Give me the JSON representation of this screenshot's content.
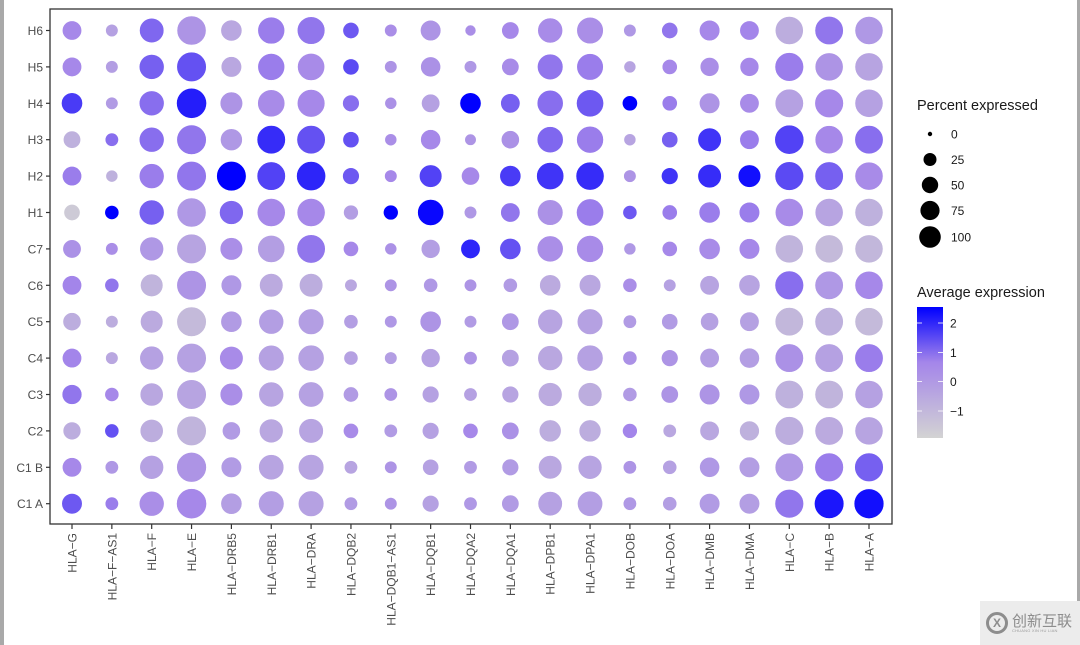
{
  "chart_data": {
    "type": "dot",
    "title": "",
    "xlabel": "",
    "ylabel": "",
    "x_categories": [
      "HLA-G",
      "HLA-F-AS1",
      "HLA-F",
      "HLA-E",
      "HLA-DRB5",
      "HLA-DRB1",
      "HLA-DRA",
      "HLA-DQB2",
      "HLA-DQB1-AS1",
      "HLA-DQB1",
      "HLA-DQA2",
      "HLA-DQA1",
      "HLA-DPB1",
      "HLA-DPA1",
      "HLA-DOB",
      "HLA-DOA",
      "HLA-DMB",
      "HLA-DMA",
      "HLA-C",
      "HLA-B",
      "HLA-A"
    ],
    "x_tick_labels": [
      "HLA−G",
      "HLA−F−AS1",
      "HLA−F",
      "HLA−E",
      "HLA−DRB5",
      "HLA−DRB1",
      "HLA−DRA",
      "HLA−DQB2",
      "HLA−DQB1−AS1",
      "HLA−DQB1",
      "HLA−DQA2",
      "HLA−DQA1",
      "HLA−DPB1",
      "HLA−DPA1",
      "HLA−DOB",
      "HLA−DOA",
      "HLA−DMB",
      "HLA−DMA",
      "HLA−C",
      "HLA−B",
      "HLA−A"
    ],
    "y_categories": [
      "H6",
      "H5",
      "H4",
      "H3",
      "H2",
      "H1",
      "C7",
      "C6",
      "C5",
      "C4",
      "C3",
      "C2",
      "C1 B",
      "C1 A"
    ],
    "cell_format": "[percent_expressed, average_expression]",
    "values": {
      "H6": [
        [
          30,
          0.6
        ],
        [
          8,
          -0.2
        ],
        [
          55,
          1.1
        ],
        [
          85,
          0.2
        ],
        [
          38,
          -0.4
        ],
        [
          70,
          0.8
        ],
        [
          75,
          0.9
        ],
        [
          18,
          1.3
        ],
        [
          8,
          0.4
        ],
        [
          35,
          0.2
        ],
        [
          5,
          0.4
        ],
        [
          22,
          0.6
        ],
        [
          58,
          0.5
        ],
        [
          68,
          0.4
        ],
        [
          8,
          0.1
        ],
        [
          18,
          0.9
        ],
        [
          35,
          0.6
        ],
        [
          30,
          0.7
        ],
        [
          78,
          -0.6
        ],
        [
          80,
          0.9
        ],
        [
          78,
          0.1
        ]
      ],
      "H5": [
        [
          30,
          0.6
        ],
        [
          8,
          -0.1
        ],
        [
          58,
          1.2
        ],
        [
          88,
          1.4
        ],
        [
          35,
          -0.4
        ],
        [
          70,
          0.8
        ],
        [
          72,
          0.5
        ],
        [
          18,
          1.5
        ],
        [
          8,
          0.2
        ],
        [
          33,
          0.3
        ],
        [
          8,
          0.1
        ],
        [
          22,
          0.5
        ],
        [
          62,
          0.9
        ],
        [
          68,
          0.8
        ],
        [
          7,
          -0.3
        ],
        [
          15,
          0.6
        ],
        [
          28,
          0.4
        ],
        [
          28,
          0.6
        ],
        [
          82,
          0.8
        ],
        [
          78,
          0.2
        ],
        [
          78,
          -0.3
        ]
      ],
      "H4": [
        [
          38,
          1.7
        ],
        [
          8,
          0.0
        ],
        [
          58,
          1.0
        ],
        [
          92,
          2.1
        ],
        [
          45,
          0.2
        ],
        [
          72,
          0.5
        ],
        [
          75,
          0.6
        ],
        [
          20,
          1.0
        ],
        [
          7,
          0.3
        ],
        [
          26,
          -0.2
        ],
        [
          38,
          2.5
        ],
        [
          30,
          1.2
        ],
        [
          65,
          1.0
        ],
        [
          72,
          1.3
        ],
        [
          15,
          2.5
        ],
        [
          15,
          0.8
        ],
        [
          35,
          0.2
        ],
        [
          30,
          0.5
        ],
        [
          80,
          -0.2
        ],
        [
          82,
          0.6
        ],
        [
          78,
          -0.2
        ]
      ],
      "H3": [
        [
          22,
          -0.7
        ],
        [
          10,
          1.0
        ],
        [
          58,
          1.0
        ],
        [
          88,
          0.9
        ],
        [
          42,
          0.1
        ],
        [
          80,
          1.9
        ],
        [
          80,
          1.4
        ],
        [
          18,
          1.4
        ],
        [
          7,
          0.4
        ],
        [
          33,
          0.6
        ],
        [
          6,
          0.2
        ],
        [
          25,
          0.3
        ],
        [
          65,
          1.1
        ],
        [
          70,
          0.8
        ],
        [
          7,
          -0.3
        ],
        [
          18,
          1.2
        ],
        [
          50,
          1.8
        ],
        [
          30,
          0.8
        ],
        [
          85,
          1.6
        ],
        [
          78,
          0.6
        ],
        [
          80,
          1.0
        ]
      ],
      "H2": [
        [
          30,
          0.8
        ],
        [
          7,
          -0.7
        ],
        [
          58,
          0.8
        ],
        [
          88,
          0.9
        ],
        [
          88,
          2.8
        ],
        [
          80,
          1.6
        ],
        [
          85,
          2.0
        ],
        [
          20,
          1.3
        ],
        [
          8,
          0.6
        ],
        [
          45,
          1.6
        ],
        [
          25,
          0.6
        ],
        [
          38,
          1.7
        ],
        [
          72,
          1.8
        ],
        [
          78,
          1.9
        ],
        [
          8,
          0.2
        ],
        [
          20,
          1.8
        ],
        [
          50,
          1.9
        ],
        [
          45,
          2.3
        ],
        [
          82,
          1.5
        ],
        [
          80,
          1.2
        ],
        [
          78,
          0.5
        ]
      ],
      "H1": [
        [
          18,
          -1.5
        ],
        [
          12,
          2.6
        ],
        [
          58,
          1.2
        ],
        [
          85,
          0.1
        ],
        [
          52,
          1.1
        ],
        [
          78,
          0.6
        ],
        [
          78,
          0.6
        ],
        [
          14,
          -0.1
        ],
        [
          14,
          2.7
        ],
        [
          65,
          2.4
        ],
        [
          8,
          0.1
        ],
        [
          30,
          0.9
        ],
        [
          62,
          0.3
        ],
        [
          72,
          0.8
        ],
        [
          12,
          1.3
        ],
        [
          15,
          0.8
        ],
        [
          38,
          0.8
        ],
        [
          35,
          0.8
        ],
        [
          78,
          0.5
        ],
        [
          78,
          -0.3
        ],
        [
          78,
          -0.7
        ]
      ],
      "C7": [
        [
          26,
          0.3
        ],
        [
          8,
          0.4
        ],
        [
          52,
          0.1
        ],
        [
          88,
          -0.3
        ],
        [
          45,
          0.4
        ],
        [
          72,
          -0.1
        ],
        [
          80,
          0.9
        ],
        [
          15,
          0.6
        ],
        [
          7,
          0.3
        ],
        [
          28,
          -0.1
        ],
        [
          30,
          2.0
        ],
        [
          38,
          1.4
        ],
        [
          65,
          0.4
        ],
        [
          70,
          0.5
        ],
        [
          7,
          0.1
        ],
        [
          15,
          0.6
        ],
        [
          38,
          0.5
        ],
        [
          35,
          0.6
        ],
        [
          78,
          -0.8
        ],
        [
          78,
          -1.0
        ],
        [
          78,
          -0.9
        ]
      ],
      "C6": [
        [
          30,
          0.7
        ],
        [
          12,
          0.9
        ],
        [
          45,
          -0.8
        ],
        [
          88,
          0.2
        ],
        [
          35,
          0.1
        ],
        [
          50,
          -0.5
        ],
        [
          50,
          -0.6
        ],
        [
          8,
          -0.4
        ],
        [
          8,
          0.2
        ],
        [
          12,
          0.1
        ],
        [
          8,
          0.2
        ],
        [
          12,
          0.0
        ],
        [
          38,
          -0.5
        ],
        [
          40,
          -0.4
        ],
        [
          12,
          0.4
        ],
        [
          8,
          -0.2
        ],
        [
          30,
          -0.3
        ],
        [
          38,
          -0.3
        ],
        [
          82,
          1.0
        ],
        [
          80,
          0.1
        ],
        [
          78,
          0.6
        ]
      ],
      "C5": [
        [
          25,
          -0.6
        ],
        [
          8,
          -0.6
        ],
        [
          45,
          -0.5
        ],
        [
          88,
          -1.0
        ],
        [
          38,
          0.0
        ],
        [
          58,
          -0.1
        ],
        [
          62,
          -0.1
        ],
        [
          12,
          -0.1
        ],
        [
          8,
          0.1
        ],
        [
          38,
          0.2
        ],
        [
          8,
          0.0
        ],
        [
          22,
          0.1
        ],
        [
          58,
          -0.3
        ],
        [
          62,
          -0.2
        ],
        [
          10,
          0.0
        ],
        [
          18,
          0.0
        ],
        [
          25,
          -0.2
        ],
        [
          30,
          -0.2
        ],
        [
          80,
          -0.9
        ],
        [
          80,
          -0.7
        ],
        [
          78,
          -1.0
        ]
      ],
      "C4": [
        [
          30,
          0.7
        ],
        [
          8,
          -0.4
        ],
        [
          52,
          -0.2
        ],
        [
          88,
          -0.2
        ],
        [
          50,
          0.5
        ],
        [
          62,
          -0.2
        ],
        [
          65,
          -0.2
        ],
        [
          12,
          -0.2
        ],
        [
          8,
          -0.1
        ],
        [
          28,
          -0.2
        ],
        [
          10,
          0.2
        ],
        [
          22,
          -0.2
        ],
        [
          58,
          -0.4
        ],
        [
          65,
          -0.2
        ],
        [
          12,
          0.3
        ],
        [
          20,
          0.2
        ],
        [
          30,
          -0.1
        ],
        [
          33,
          -0.1
        ],
        [
          80,
          0.3
        ],
        [
          80,
          -0.2
        ],
        [
          80,
          0.8
        ]
      ],
      "C3": [
        [
          32,
          0.9
        ],
        [
          12,
          0.6
        ],
        [
          48,
          -0.4
        ],
        [
          88,
          -0.3
        ],
        [
          45,
          0.4
        ],
        [
          58,
          -0.3
        ],
        [
          60,
          -0.2
        ],
        [
          15,
          0.0
        ],
        [
          10,
          0.2
        ],
        [
          20,
          -0.2
        ],
        [
          10,
          -0.2
        ],
        [
          20,
          -0.3
        ],
        [
          52,
          -0.5
        ],
        [
          52,
          -0.6
        ],
        [
          12,
          0.0
        ],
        [
          22,
          0.2
        ],
        [
          35,
          0.2
        ],
        [
          35,
          0.1
        ],
        [
          80,
          -0.7
        ],
        [
          80,
          -0.8
        ],
        [
          78,
          -0.2
        ]
      ],
      "C2": [
        [
          24,
          -0.6
        ],
        [
          12,
          1.4
        ],
        [
          48,
          -0.6
        ],
        [
          88,
          -0.8
        ],
        [
          25,
          0.0
        ],
        [
          52,
          -0.4
        ],
        [
          56,
          -0.3
        ],
        [
          15,
          0.5
        ],
        [
          10,
          0.0
        ],
        [
          20,
          -0.2
        ],
        [
          15,
          0.6
        ],
        [
          22,
          0.3
        ],
        [
          42,
          -0.6
        ],
        [
          42,
          -0.6
        ],
        [
          14,
          0.7
        ],
        [
          10,
          -0.4
        ],
        [
          30,
          -0.4
        ],
        [
          32,
          -0.7
        ],
        [
          82,
          -0.6
        ],
        [
          80,
          -0.5
        ],
        [
          78,
          -0.3
        ]
      ],
      "C1 B": [
        [
          30,
          0.6
        ],
        [
          10,
          0.1
        ],
        [
          52,
          -0.2
        ],
        [
          90,
          0.2
        ],
        [
          35,
          0.0
        ],
        [
          60,
          -0.3
        ],
        [
          62,
          -0.3
        ],
        [
          10,
          -0.3
        ],
        [
          8,
          0.2
        ],
        [
          18,
          -0.2
        ],
        [
          10,
          0.0
        ],
        [
          20,
          0.0
        ],
        [
          50,
          -0.4
        ],
        [
          52,
          -0.3
        ],
        [
          10,
          0.2
        ],
        [
          12,
          -0.2
        ],
        [
          33,
          0.1
        ],
        [
          35,
          -0.1
        ],
        [
          80,
          0.1
        ],
        [
          82,
          0.8
        ],
        [
          82,
          1.2
        ]
      ],
      "C1 A": [
        [
          35,
          1.3
        ],
        [
          10,
          0.8
        ],
        [
          58,
          0.4
        ],
        [
          92,
          0.6
        ],
        [
          38,
          -0.1
        ],
        [
          62,
          -0.1
        ],
        [
          62,
          -0.2
        ],
        [
          10,
          0.0
        ],
        [
          8,
          0.2
        ],
        [
          20,
          -0.2
        ],
        [
          10,
          0.1
        ],
        [
          22,
          0.0
        ],
        [
          55,
          -0.2
        ],
        [
          60,
          -0.1
        ],
        [
          10,
          0.1
        ],
        [
          12,
          -0.1
        ],
        [
          35,
          0.0
        ],
        [
          35,
          -0.1
        ],
        [
          82,
          0.9
        ],
        [
          88,
          2.2
        ],
        [
          90,
          2.3
        ]
      ]
    },
    "size_legend": {
      "title": "Percent expressed",
      "breaks": [
        "0",
        "25",
        "50",
        "75",
        "100"
      ]
    },
    "color_legend": {
      "title": "Average expression",
      "ticks": [
        "2",
        "1",
        "0",
        "−1"
      ],
      "range": [
        -1.8,
        2.5
      ],
      "low_color": "#d3d3d3",
      "high_color": "#0000ff"
    },
    "grid": false,
    "legend_position": "right"
  },
  "watermark": {
    "logo_glyph": "X",
    "cn_text": "创新互联",
    "en_text": "CHUANG XIN HU LIAN"
  }
}
